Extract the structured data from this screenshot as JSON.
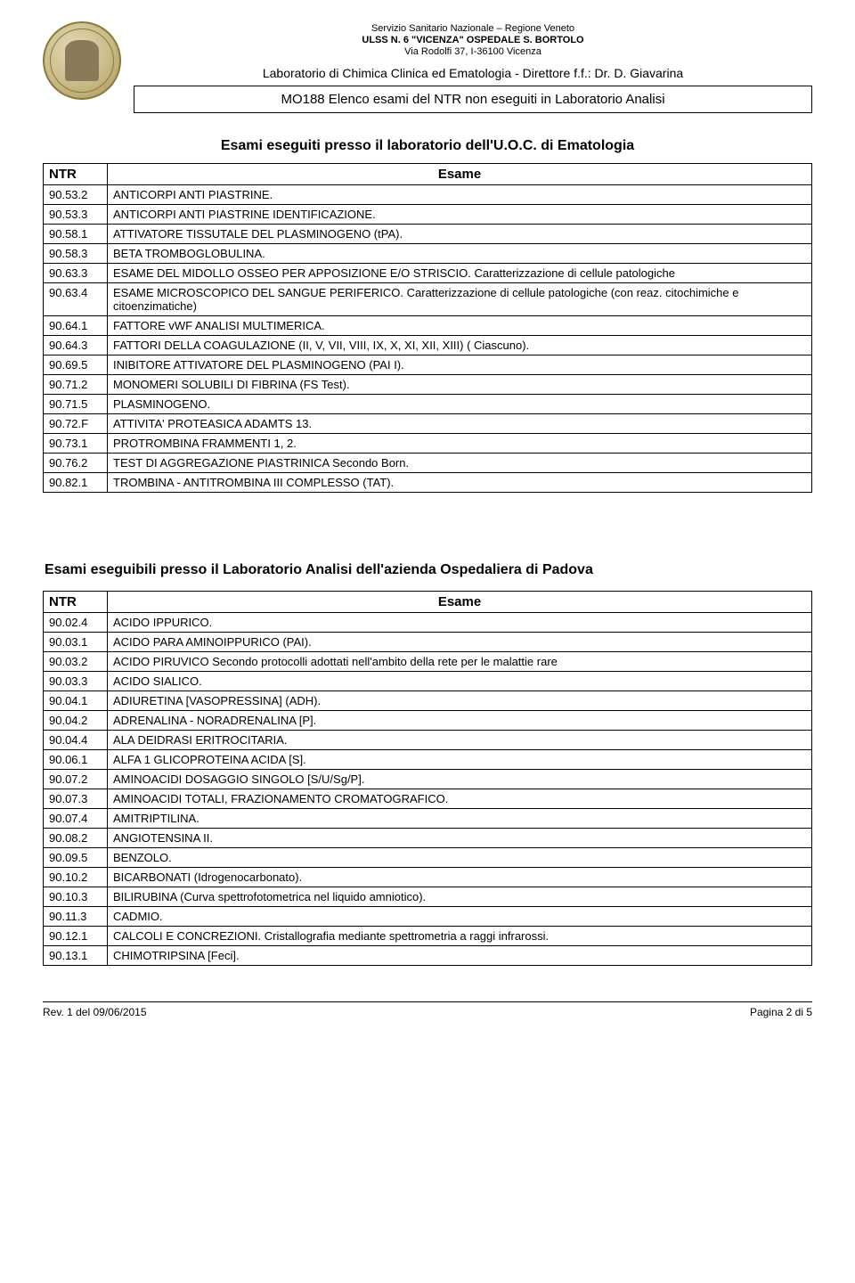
{
  "header": {
    "line1": "Servizio Sanitario Nazionale – Regione Veneto",
    "line2": "ULSS N. 6 \"VICENZA\" OSPEDALE S. BORTOLO",
    "line3": "Via Rodolfi 37, I-36100 Vicenza",
    "line4": "Laboratorio di Chimica Clinica ed Ematologia - Direttore f.f.: Dr. D. Giavarina",
    "box": "MO188 Elenco esami del NTR non eseguiti in Laboratorio Analisi"
  },
  "section1": {
    "title": "Esami eseguiti presso il laboratorio dell'U.O.C. di Ematologia",
    "ntr_label": "NTR",
    "esame_label": "Esame",
    "rows": [
      {
        "c": "90.53.2",
        "d": "ANTICORPI ANTI PIASTRINE."
      },
      {
        "c": "90.53.3",
        "d": "ANTICORPI ANTI PIASTRINE IDENTIFICAZIONE."
      },
      {
        "c": "90.58.1",
        "d": "ATTIVATORE TISSUTALE DEL PLASMINOGENO (tPA)."
      },
      {
        "c": "90.58.3",
        "d": "BETA TROMBOGLOBULINA."
      },
      {
        "c": "90.63.3",
        "d": "ESAME DEL MIDOLLO OSSEO PER APPOSIZIONE E/O STRISCIO. Caratterizzazione di cellule patologiche"
      },
      {
        "c": "90.63.4",
        "d": "ESAME MICROSCOPICO DEL SANGUE PERIFERICO. Caratterizzazione di cellule patologiche (con reaz. citochimiche e citoenzimatiche)"
      },
      {
        "c": "90.64.1",
        "d": "FATTORE vWF ANALISI MULTIMERICA."
      },
      {
        "c": "90.64.3",
        "d": "FATTORI DELLA COAGULAZIONE (II, V, VII, VIII, IX, X, XI, XII, XIII) ( Ciascuno)."
      },
      {
        "c": "90.69.5",
        "d": "INIBITORE ATTIVATORE DEL PLASMINOGENO (PAI I)."
      },
      {
        "c": "90.71.2",
        "d": "MONOMERI SOLUBILI DI FIBRINA (FS Test)."
      },
      {
        "c": "90.71.5",
        "d": "PLASMINOGENO."
      },
      {
        "c": "90.72.F",
        "d": "ATTIVITA' PROTEASICA ADAMTS 13."
      },
      {
        "c": "90.73.1",
        "d": "PROTROMBINA FRAMMENTI 1, 2."
      },
      {
        "c": "90.76.2",
        "d": "TEST DI AGGREGAZIONE PIASTRINICA Secondo Born."
      },
      {
        "c": "90.82.1",
        "d": "TROMBINA - ANTITROMBINA III COMPLESSO (TAT)."
      }
    ]
  },
  "section2": {
    "title": "Esami eseguibili presso il Laboratorio Analisi dell'azienda Ospedaliera di Padova",
    "ntr_label": "NTR",
    "esame_label": "Esame",
    "rows": [
      {
        "c": "90.02.4",
        "d": "ACIDO IPPURICO."
      },
      {
        "c": "90.03.1",
        "d": "ACIDO PARA AMINOIPPURICO (PAI)."
      },
      {
        "c": "90.03.2",
        "d": "ACIDO PIRUVICO  Secondo protocolli adottati nell'ambito della rete per le malattie rare"
      },
      {
        "c": "90.03.3",
        "d": "ACIDO SIALICO."
      },
      {
        "c": "90.04.1",
        "d": "ADIURETINA [VASOPRESSINA] (ADH)."
      },
      {
        "c": "90.04.2",
        "d": "ADRENALINA - NORADRENALINA [P]."
      },
      {
        "c": "90.04.4",
        "d": "ALA DEIDRASI ERITROCITARIA."
      },
      {
        "c": "90.06.1",
        "d": "ALFA 1 GLICOPROTEINA ACIDA [S]."
      },
      {
        "c": "90.07.2",
        "d": "AMINOACIDI DOSAGGIO SINGOLO [S/U/Sg/P]."
      },
      {
        "c": "90.07.3",
        "d": "AMINOACIDI TOTALI, FRAZIONAMENTO CROMATOGRAFICO."
      },
      {
        "c": "90.07.4",
        "d": "AMITRIPTILINA."
      },
      {
        "c": "90.08.2",
        "d": "ANGIOTENSINA II."
      },
      {
        "c": "90.09.5",
        "d": "BENZOLO."
      },
      {
        "c": "90.10.2",
        "d": "BICARBONATI (Idrogenocarbonato)."
      },
      {
        "c": "90.10.3",
        "d": "BILIRUBINA (Curva spettrofotometrica nel liquido amniotico)."
      },
      {
        "c": "90.11.3",
        "d": "CADMIO."
      },
      {
        "c": "90.12.1",
        "d": "CALCOLI E CONCREZIONI. Cristallografia mediante spettrometria a raggi infrarossi."
      },
      {
        "c": "90.13.1",
        "d": "CHIMOTRIPSINA [Feci]."
      }
    ]
  },
  "footer": {
    "left": "Rev. 1 del 09/06/2015",
    "right": "Pagina 2 di 5"
  }
}
